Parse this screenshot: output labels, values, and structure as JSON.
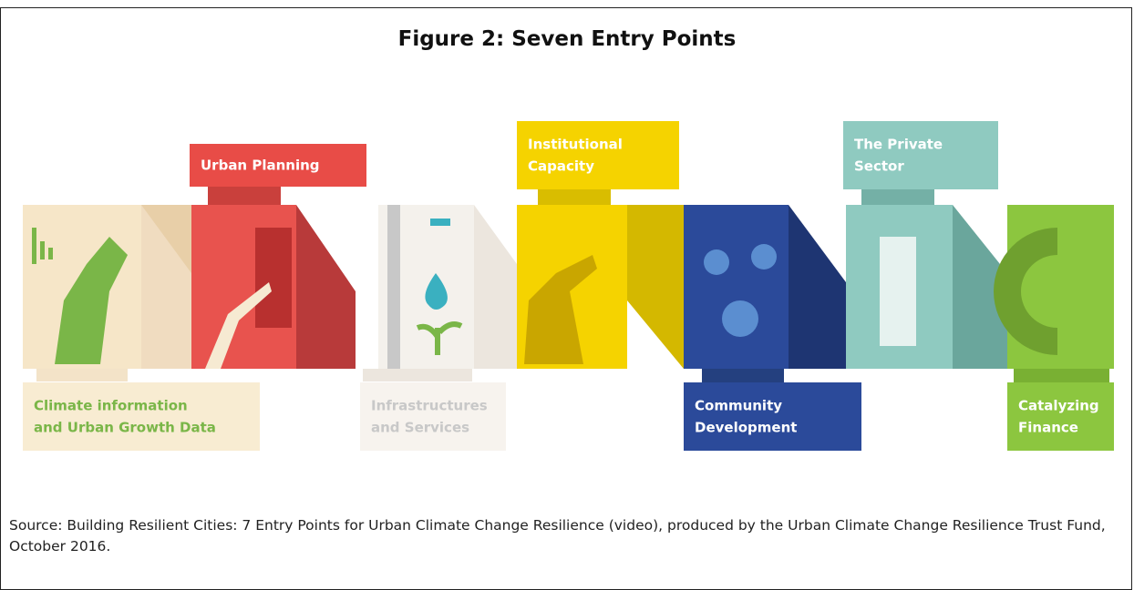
{
  "title": "Figure 2: Seven Entry Points",
  "entry_points": [
    {
      "lines": [
        "Climate information",
        "and Urban Growth Data"
      ]
    },
    {
      "lines": [
        "Urban Planning"
      ]
    },
    {
      "lines": [
        "Infrastructures",
        "and Services"
      ]
    },
    {
      "lines": [
        "Institutional",
        "Capacity"
      ]
    },
    {
      "lines": [
        "Community",
        "Development"
      ]
    },
    {
      "lines": [
        "The Private",
        "Sector"
      ]
    },
    {
      "lines": [
        "Catalyzing",
        "Finance"
      ]
    }
  ],
  "source": "Source: Building Resilient Cities: 7 Entry Points for Urban Climate Change Resilience (video), produced by the Urban Climate Change Resilience Trust Fund, October 2016."
}
